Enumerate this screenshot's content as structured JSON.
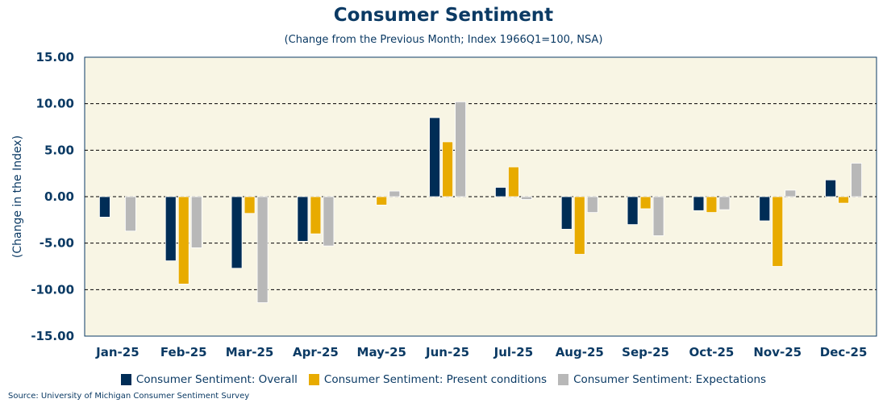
{
  "chart_data": {
    "type": "bar",
    "title": "Consumer Sentiment",
    "subtitle": "(Change from the Previous Month; Index 1966Q1=100, NSA)",
    "xlabel": "",
    "ylabel": "(Change in the Index)",
    "ylim": [
      -15,
      15
    ],
    "yticks": [
      "15.00",
      "10.00",
      "5.00",
      "0.00",
      "-5.00",
      "-10.00",
      "-15.00"
    ],
    "ytick_values": [
      15,
      10,
      5,
      0,
      -5,
      -10,
      -15
    ],
    "grid": true,
    "legend_position": "bottom",
    "categories": [
      "Jan-25",
      "Feb-25",
      "Mar-25",
      "Apr-25",
      "May-25",
      "Jun-25",
      "Jul-25",
      "Aug-25",
      "Sep-25",
      "Oct-25",
      "Nov-25",
      "Dec-25"
    ],
    "series": [
      {
        "name": "Consumer Sentiment: Overall",
        "color": "#002d56",
        "values": [
          -2.2,
          -6.9,
          -7.7,
          -4.8,
          0.0,
          8.5,
          1.0,
          -3.5,
          -3.0,
          -1.5,
          -2.6,
          1.8
        ]
      },
      {
        "name": "Consumer Sentiment: Present conditions",
        "color": "#e8ab00",
        "values": [
          0.0,
          -9.4,
          -1.8,
          -4.0,
          -0.9,
          5.9,
          3.2,
          -6.2,
          -1.3,
          -1.7,
          -7.5,
          -0.7
        ]
      },
      {
        "name": "Consumer Sentiment: Expectations",
        "color": "#b8b8b8",
        "values": [
          -3.7,
          -5.5,
          -11.4,
          -5.3,
          0.6,
          10.2,
          -0.3,
          -1.7,
          -4.2,
          -1.4,
          0.7,
          3.6
        ]
      }
    ],
    "source": "Source: University of Michigan Consumer Sentiment Survey"
  }
}
